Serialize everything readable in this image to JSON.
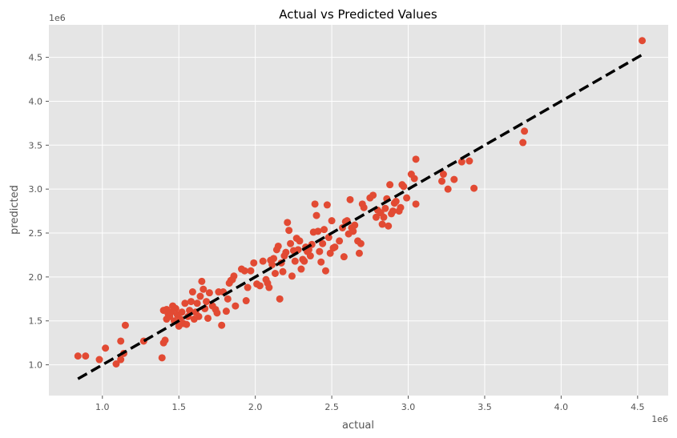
{
  "chart_data": {
    "type": "scatter",
    "title": "Actual vs Predicted Values",
    "xlabel": "actual",
    "ylabel": "predicted",
    "x_offset_label": "1e6",
    "y_offset_label": "1e6",
    "xlim": [
      0.65,
      4.7
    ],
    "ylim": [
      0.65,
      4.87
    ],
    "xticks": [
      1.0,
      1.5,
      2.0,
      2.5,
      3.0,
      3.5,
      4.0,
      4.5
    ],
    "xtick_labels": [
      "1.0",
      "1.5",
      "2.0",
      "2.5",
      "3.0",
      "3.5",
      "4.0",
      "4.5"
    ],
    "yticks": [
      1.0,
      1.5,
      2.0,
      2.5,
      3.0,
      3.5,
      4.0,
      4.5
    ],
    "ytick_labels": [
      "1.0",
      "1.5",
      "2.0",
      "2.5",
      "3.0",
      "3.5",
      "4.0",
      "4.5"
    ],
    "grid": true,
    "marker_color": "#E24A33",
    "line_color": "#000000",
    "background_color": "#E5E5E5",
    "reference_line": {
      "style": "dashed",
      "from": [
        0.84,
        0.84
      ],
      "to": [
        4.53,
        4.53
      ]
    },
    "points": [
      [
        0.84,
        1.1
      ],
      [
        0.89,
        1.1
      ],
      [
        0.98,
        1.06
      ],
      [
        1.02,
        1.19
      ],
      [
        1.09,
        1.01
      ],
      [
        1.12,
        1.06
      ],
      [
        1.12,
        1.27
      ],
      [
        1.14,
        1.13
      ],
      [
        1.15,
        1.45
      ],
      [
        1.27,
        1.27
      ],
      [
        1.39,
        1.08
      ],
      [
        1.4,
        1.25
      ],
      [
        1.41,
        1.28
      ],
      [
        1.4,
        1.62
      ],
      [
        1.42,
        1.63
      ],
      [
        1.42,
        1.52
      ],
      [
        1.43,
        1.58
      ],
      [
        1.44,
        1.55
      ],
      [
        1.45,
        1.6
      ],
      [
        1.46,
        1.67
      ],
      [
        1.47,
        1.5
      ],
      [
        1.48,
        1.64
      ],
      [
        1.49,
        1.57
      ],
      [
        1.5,
        1.44
      ],
      [
        1.51,
        1.52
      ],
      [
        1.52,
        1.6
      ],
      [
        1.53,
        1.47
      ],
      [
        1.54,
        1.7
      ],
      [
        1.55,
        1.46
      ],
      [
        1.56,
        1.55
      ],
      [
        1.57,
        1.62
      ],
      [
        1.58,
        1.72
      ],
      [
        1.59,
        1.83
      ],
      [
        1.6,
        1.52
      ],
      [
        1.61,
        1.6
      ],
      [
        1.62,
        1.7
      ],
      [
        1.63,
        1.55
      ],
      [
        1.64,
        1.78
      ],
      [
        1.65,
        1.95
      ],
      [
        1.66,
        1.86
      ],
      [
        1.67,
        1.64
      ],
      [
        1.68,
        1.72
      ],
      [
        1.69,
        1.53
      ],
      [
        1.7,
        1.82
      ],
      [
        1.72,
        1.67
      ],
      [
        1.74,
        1.63
      ],
      [
        1.75,
        1.59
      ],
      [
        1.76,
        1.83
      ],
      [
        1.78,
        1.45
      ],
      [
        1.79,
        1.83
      ],
      [
        1.81,
        1.61
      ],
      [
        1.82,
        1.75
      ],
      [
        1.83,
        1.93
      ],
      [
        1.84,
        1.96
      ],
      [
        1.85,
        1.97
      ],
      [
        1.86,
        2.01
      ],
      [
        1.87,
        1.67
      ],
      [
        1.91,
        2.09
      ],
      [
        1.93,
        2.07
      ],
      [
        1.94,
        1.73
      ],
      [
        1.95,
        1.88
      ],
      [
        1.97,
        2.07
      ],
      [
        1.99,
        2.16
      ],
      [
        2.01,
        1.92
      ],
      [
        2.03,
        1.9
      ],
      [
        2.05,
        2.18
      ],
      [
        2.07,
        1.97
      ],
      [
        2.08,
        1.93
      ],
      [
        2.09,
        1.88
      ],
      [
        2.1,
        2.19
      ],
      [
        2.11,
        2.14
      ],
      [
        2.12,
        2.21
      ],
      [
        2.13,
        2.04
      ],
      [
        2.14,
        2.31
      ],
      [
        2.15,
        2.35
      ],
      [
        2.16,
        1.75
      ],
      [
        2.17,
        2.16
      ],
      [
        2.18,
        2.06
      ],
      [
        2.19,
        2.24
      ],
      [
        2.2,
        2.28
      ],
      [
        2.21,
        2.62
      ],
      [
        2.22,
        2.53
      ],
      [
        2.23,
        2.38
      ],
      [
        2.24,
        2.01
      ],
      [
        2.25,
        2.3
      ],
      [
        2.26,
        2.18
      ],
      [
        2.27,
        2.44
      ],
      [
        2.28,
        2.31
      ],
      [
        2.29,
        2.41
      ],
      [
        2.3,
        2.09
      ],
      [
        2.31,
        2.2
      ],
      [
        2.32,
        2.18
      ],
      [
        2.33,
        2.34
      ],
      [
        2.34,
        2.29
      ],
      [
        2.35,
        2.31
      ],
      [
        2.36,
        2.24
      ],
      [
        2.37,
        2.37
      ],
      [
        2.38,
        2.51
      ],
      [
        2.39,
        2.83
      ],
      [
        2.4,
        2.7
      ],
      [
        2.41,
        2.52
      ],
      [
        2.42,
        2.29
      ],
      [
        2.43,
        2.17
      ],
      [
        2.44,
        2.38
      ],
      [
        2.45,
        2.54
      ],
      [
        2.46,
        2.07
      ],
      [
        2.47,
        2.82
      ],
      [
        2.48,
        2.45
      ],
      [
        2.49,
        2.27
      ],
      [
        2.5,
        2.64
      ],
      [
        2.51,
        2.33
      ],
      [
        2.52,
        2.34
      ],
      [
        2.55,
        2.41
      ],
      [
        2.57,
        2.56
      ],
      [
        2.58,
        2.23
      ],
      [
        2.59,
        2.63
      ],
      [
        2.6,
        2.64
      ],
      [
        2.61,
        2.49
      ],
      [
        2.62,
        2.88
      ],
      [
        2.63,
        2.56
      ],
      [
        2.64,
        2.52
      ],
      [
        2.65,
        2.59
      ],
      [
        2.67,
        2.41
      ],
      [
        2.68,
        2.27
      ],
      [
        2.69,
        2.38
      ],
      [
        2.7,
        2.83
      ],
      [
        2.71,
        2.79
      ],
      [
        2.75,
        2.9
      ],
      [
        2.77,
        2.93
      ],
      [
        2.79,
        2.68
      ],
      [
        2.8,
        2.76
      ],
      [
        2.82,
        2.73
      ],
      [
        2.83,
        2.6
      ],
      [
        2.84,
        2.68
      ],
      [
        2.85,
        2.78
      ],
      [
        2.86,
        2.89
      ],
      [
        2.87,
        2.58
      ],
      [
        2.88,
        3.05
      ],
      [
        2.89,
        2.72
      ],
      [
        2.9,
        2.75
      ],
      [
        2.91,
        2.84
      ],
      [
        2.92,
        2.86
      ],
      [
        2.94,
        2.75
      ],
      [
        2.95,
        2.79
      ],
      [
        2.96,
        3.05
      ],
      [
        2.97,
        3.03
      ],
      [
        2.99,
        2.9
      ],
      [
        3.02,
        3.17
      ],
      [
        3.04,
        3.12
      ],
      [
        3.05,
        3.34
      ],
      [
        3.05,
        2.83
      ],
      [
        3.22,
        3.09
      ],
      [
        3.23,
        3.17
      ],
      [
        3.26,
        3.0
      ],
      [
        3.3,
        3.11
      ],
      [
        3.35,
        3.31
      ],
      [
        3.4,
        3.32
      ],
      [
        3.43,
        3.01
      ],
      [
        3.75,
        3.53
      ],
      [
        3.76,
        3.66
      ],
      [
        4.53,
        4.69
      ]
    ]
  }
}
